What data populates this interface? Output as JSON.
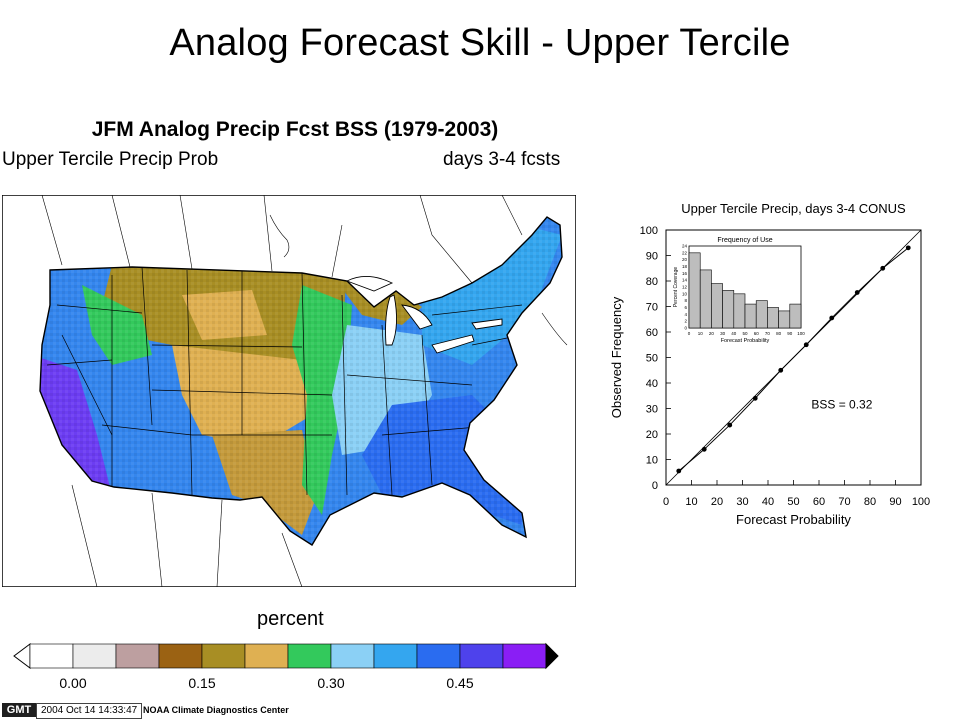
{
  "slide": {
    "title": "Analog Forecast Skill - Upper Tercile"
  },
  "map": {
    "title": "JFM Analog Precip Fcst BSS (1979-2003)",
    "subtitle_left": "Upper Tercile Precip Prob",
    "subtitle_right": "days 3-4 fcsts",
    "colorbar_title": "percent",
    "colorbar_colors": [
      "#ffffff",
      "#ececec",
      "#bd9fa0",
      "#9b6213",
      "#a88e24",
      "#dfb052",
      "#33c95c",
      "#8bd0f5",
      "#34a6ef",
      "#2a6cf0",
      "#4e42ec",
      "#8a1ef5"
    ],
    "colorbar_ticks": [
      "0.00",
      "0.15",
      "0.30",
      "0.45"
    ],
    "regions": {
      "west_coast": "#3486ee",
      "california": "#6c3df2",
      "northern_plains": "#a88e24",
      "central_plains": "#dfb052",
      "texas_core": "#c49a3c",
      "mississippi": "#33c95c",
      "ohio_valley": "#8bd0f5",
      "southeast": "#2a6cf0",
      "northeast": "#34a6ef"
    }
  },
  "footer": {
    "logo": "GMT",
    "stamp": "2004 Oct 14 14:33:47",
    "credit": "NOAA Climate Diagnostics Center"
  },
  "chart_data": {
    "type": "scatter",
    "title": "Upper Tercile Precip, days 3-4 CONUS",
    "xlabel": "Forecast Probability",
    "ylabel": "Observed Frequency",
    "xlim": [
      0,
      100
    ],
    "ylim": [
      0,
      100
    ],
    "xticks": [
      0,
      10,
      20,
      30,
      40,
      50,
      60,
      70,
      80,
      90,
      100
    ],
    "yticks": [
      0,
      10,
      20,
      30,
      40,
      50,
      60,
      70,
      80,
      90,
      100
    ],
    "x": [
      5,
      15,
      25,
      35,
      45,
      55,
      65,
      75,
      85,
      95
    ],
    "y": [
      5.5,
      14,
      23.5,
      34,
      45,
      55,
      65.5,
      75.5,
      85,
      93
    ],
    "diagonal": true,
    "annotation": "BSS = 0.32",
    "inset": {
      "type": "bar",
      "title": "Frequency of Use",
      "xlabel": "Forecast Probability",
      "ylabel": "Percent Coverage",
      "ylim": [
        0,
        24
      ],
      "yticks": [
        0,
        2,
        4,
        6,
        8,
        10,
        12,
        14,
        16,
        18,
        20,
        22,
        24
      ],
      "xticks": [
        0,
        10,
        20,
        30,
        40,
        50,
        60,
        70,
        80,
        90,
        100
      ],
      "categories": [
        5,
        15,
        25,
        35,
        45,
        55,
        65,
        75,
        85,
        95
      ],
      "values": [
        22,
        17,
        13,
        11,
        10,
        7,
        8,
        6,
        5,
        7
      ]
    }
  }
}
